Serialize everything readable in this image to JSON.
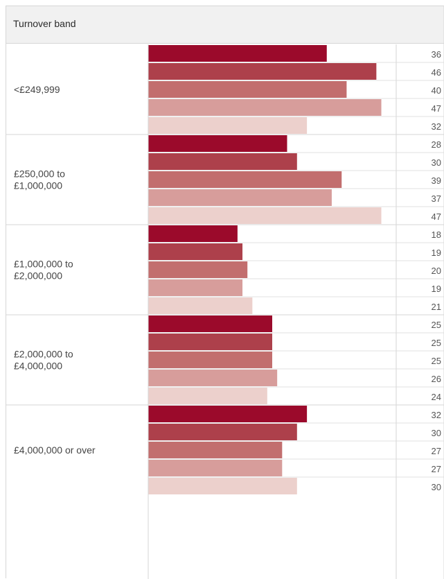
{
  "header": {
    "title": "Turnover band"
  },
  "chart_data": {
    "type": "bar",
    "orientation": "horizontal",
    "categories": [
      "<£249,999",
      "£250,000 to £1,000,000",
      "£1,000,000 to £2,000,000",
      "£2,000,000 to £4,000,000",
      "£4,000,000 or over"
    ],
    "category_lines": [
      [
        "<£249,999"
      ],
      [
        "£250,000 to",
        "£1,000,000"
      ],
      [
        "£1,000,000 to",
        "£2,000,000"
      ],
      [
        "£2,000,000 to",
        "£4,000,000"
      ],
      [
        "£4,000,000 or over"
      ]
    ],
    "series": [
      {
        "values": [
          36,
          28,
          18,
          25,
          32
        ]
      },
      {
        "values": [
          46,
          30,
          19,
          25,
          30
        ]
      },
      {
        "values": [
          40,
          39,
          20,
          25,
          27
        ]
      },
      {
        "values": [
          47,
          37,
          19,
          26,
          27
        ]
      },
      {
        "values": [
          32,
          47,
          21,
          24,
          30
        ]
      }
    ],
    "colors": [
      "#9b0a2b",
      "#ad404b",
      "#c26e6e",
      "#d79d9b",
      "#ecd0cc"
    ],
    "xlim": [
      0,
      50
    ],
    "grid": true,
    "title": "",
    "xlabel": "",
    "ylabel": ""
  }
}
